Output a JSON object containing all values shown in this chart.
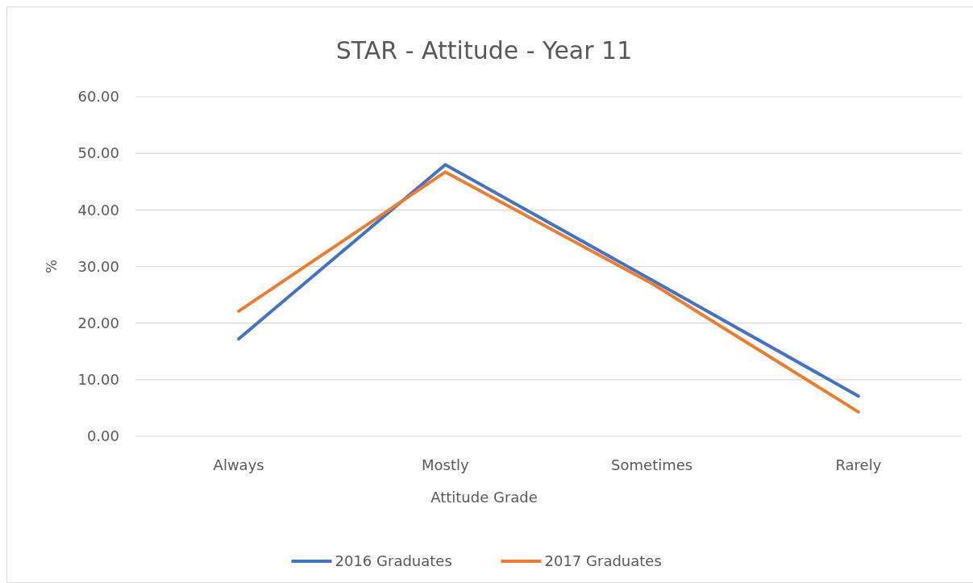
{
  "chart_data": {
    "type": "line",
    "title": "STAR - Attitude - Year 11",
    "xlabel": "Attitude Grade",
    "ylabel": "%",
    "categories": [
      "Always",
      "Mostly",
      "Sometimes",
      "Rarely"
    ],
    "series": [
      {
        "name": "2016 Graduates",
        "color": "#4472c4",
        "values": [
          17.2,
          48.0,
          27.6,
          7.1
        ]
      },
      {
        "name": "2017 Graduates",
        "color": "#ed7d31",
        "values": [
          22.1,
          46.7,
          27.0,
          4.3
        ]
      }
    ],
    "ylim": [
      0,
      60
    ],
    "yticks": [
      {
        "value": 0,
        "label": "0.00"
      },
      {
        "value": 10,
        "label": "10.00"
      },
      {
        "value": 20,
        "label": "20.00"
      },
      {
        "value": 30,
        "label": "30.00"
      },
      {
        "value": 40,
        "label": "40.00"
      },
      {
        "value": 50,
        "label": "50.00"
      },
      {
        "value": 60,
        "label": "60.00"
      }
    ],
    "grid": "y",
    "legend": "bottom",
    "marker": "none",
    "line_style": "solid"
  }
}
